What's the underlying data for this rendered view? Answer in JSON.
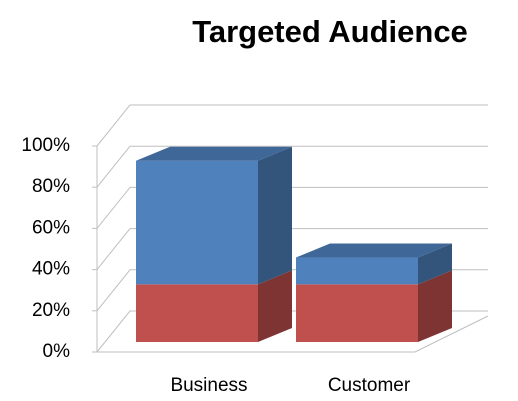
{
  "chart_data": {
    "type": "bar3d_stacked",
    "title": "Targeted Audience",
    "categories": [
      "Business",
      "Customer"
    ],
    "series": [
      {
        "color": "#c0504d",
        "values": [
          28,
          28
        ]
      },
      {
        "color": "#4f81bd",
        "values": [
          60,
          13
        ]
      }
    ],
    "ylim": [
      0,
      100
    ],
    "yticks": [
      {
        "value": 0,
        "label": "0%"
      },
      {
        "value": 20,
        "label": "20%"
      },
      {
        "value": 40,
        "label": "40%"
      },
      {
        "value": 60,
        "label": "60%"
      },
      {
        "value": 80,
        "label": "80%"
      },
      {
        "value": 100,
        "label": "100%"
      }
    ],
    "grid": true
  }
}
